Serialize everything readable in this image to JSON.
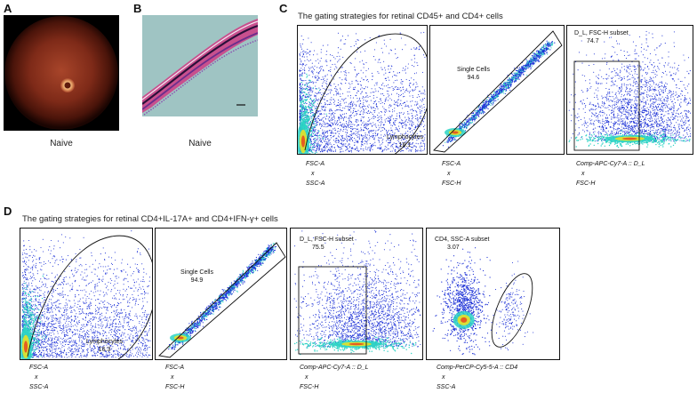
{
  "panels": {
    "A": {
      "letter": "A",
      "caption": "Naive"
    },
    "B": {
      "letter": "B",
      "caption": "Naive"
    },
    "C": {
      "letter": "C",
      "title": "The gating strategies for retinal CD45+ and CD4+ cells",
      "plots": [
        {
          "gate_name": "Lymphocytes",
          "gate_value": "16.1",
          "x_axis": "FSC-A",
          "sep": "x",
          "y_axis": "SSC-A"
        },
        {
          "gate_name": "Single Cells",
          "gate_value": "94.6",
          "x_axis": "FSC-A",
          "sep": "x",
          "y_axis": "FSC-H"
        },
        {
          "gate_name": "D_L, FSC-H subset",
          "gate_value": "74.7",
          "x_axis": "Comp-APC-Cy7-A :: D_L",
          "sep": "x",
          "y_axis": "FSC-H"
        }
      ]
    },
    "D": {
      "letter": "D",
      "title": "The gating strategies for retinal CD4+IL-17A+ and CD4+IFN-γ+ cells",
      "plots": [
        {
          "gate_name": "Lymphocytes",
          "gate_value": "16.3",
          "x_axis": "FSC-A",
          "sep": "x",
          "y_axis": "SSC-A"
        },
        {
          "gate_name": "Single Cells",
          "gate_value": "94.9",
          "x_axis": "FSC-A",
          "sep": "x",
          "y_axis": "FSC-H"
        },
        {
          "gate_name": "D_L, FSC-H subset",
          "gate_value": "75.5",
          "x_axis": "Comp-APC-Cy7-A :: D_L",
          "sep": "x",
          "y_axis": "FSC-H"
        },
        {
          "gate_name": "CD4, SSC-A subset",
          "gate_value": "3.07",
          "x_axis": "Comp-PerCP-Cy5-5-A :: CD4",
          "sep": "x",
          "y_axis": "SSC-A"
        }
      ]
    }
  },
  "colors": {
    "dots": "#1a2fd6",
    "dense_mid": "#2cd3c4",
    "dense_hi": "#f2e21c",
    "dense_peak": "#e8451e",
    "stain_pink": "#d46fa0",
    "stain_purple": "#5a2a8a"
  }
}
